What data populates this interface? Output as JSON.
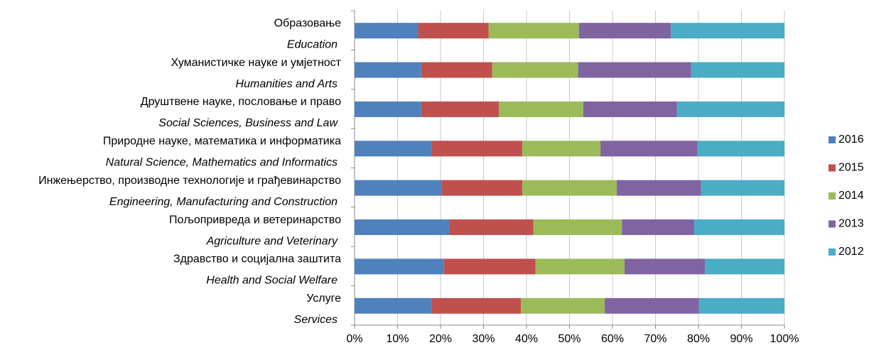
{
  "chart_data": {
    "type": "stacked_barh",
    "categories": [
      "Образовање",
      "Хуманистичке науке и умјетност",
      "Друштвене науке, пословање и право",
      "Природне науке, математика и информатика",
      "Инжењерство, производне технологије и грађевинарство",
      "Пољопривреда и ветеринарство",
      "Здравство и социјална заштита",
      "Услуге"
    ],
    "categories_en": [
      "Education",
      "Humanities and Arts",
      "Social Sciences, Business and Law",
      "Natural Science, Mathematics and Informatics",
      "Engineering, Manufacturing and Construction",
      "Agriculture and Veterinary",
      "Health and Social Welfare",
      "Services"
    ],
    "series": [
      {
        "name": "2016",
        "color": "#4f81bd",
        "values": [
          14.8,
          15.5,
          15.5,
          18.0,
          20.2,
          22.0,
          20.8,
          18.0
        ]
      },
      {
        "name": "2015",
        "color": "#c0504d",
        "values": [
          16.4,
          16.5,
          18.1,
          21.0,
          18.8,
          19.6,
          21.3,
          20.7
        ]
      },
      {
        "name": "2014",
        "color": "#9bbb59",
        "values": [
          21.0,
          20.0,
          19.6,
          18.2,
          22.0,
          20.6,
          20.7,
          19.5
        ]
      },
      {
        "name": "2013",
        "color": "#8064a2",
        "values": [
          21.4,
          26.3,
          21.8,
          22.6,
          19.6,
          16.8,
          18.7,
          21.9
        ]
      },
      {
        "name": "2012",
        "color": "#4bacc6",
        "values": [
          26.4,
          21.7,
          25.0,
          20.2,
          19.4,
          21.0,
          18.5,
          19.9
        ]
      }
    ],
    "xlim": [
      0,
      100
    ],
    "xticks": [
      {
        "value": 0,
        "label": "0%"
      },
      {
        "value": 10,
        "label": "10%"
      },
      {
        "value": 20,
        "label": "20%"
      },
      {
        "value": 30,
        "label": "30%"
      },
      {
        "value": 40,
        "label": "40%"
      },
      {
        "value": 50,
        "label": "50%"
      },
      {
        "value": 60,
        "label": "60%"
      },
      {
        "value": 70,
        "label": "70%"
      },
      {
        "value": 80,
        "label": "80%"
      },
      {
        "value": 90,
        "label": "90%"
      },
      {
        "value": 100,
        "label": "100%"
      }
    ],
    "grid": true,
    "legend": "right"
  }
}
